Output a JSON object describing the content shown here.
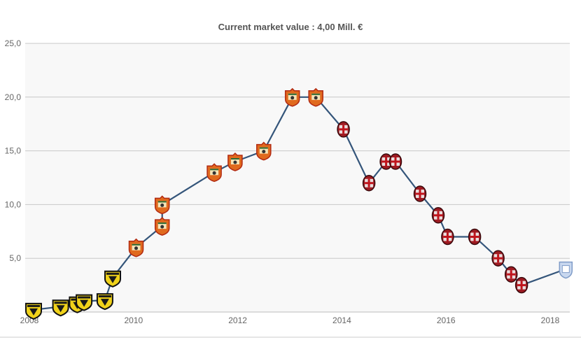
{
  "chart_data": {
    "type": "line",
    "title": "Current market value : 4,00 Mill. €",
    "xlabel": "",
    "ylabel": "",
    "xlim": [
      2008,
      2018.3
    ],
    "ylim": [
      0,
      25
    ],
    "y_ticks": [
      {
        "value": 5,
        "label": "5,0"
      },
      {
        "value": 10,
        "label": "10,0"
      },
      {
        "value": 15,
        "label": "15,0"
      },
      {
        "value": 20,
        "label": "20,0"
      },
      {
        "value": 25,
        "label": "25,0"
      }
    ],
    "x_ticks": [
      {
        "value": 2008,
        "label": "2008"
      },
      {
        "value": 2010,
        "label": "2010"
      },
      {
        "value": 2012,
        "label": "2012"
      },
      {
        "value": 2014,
        "label": "2014"
      },
      {
        "value": 2016,
        "label": "2016"
      },
      {
        "value": 2018,
        "label": "2018"
      }
    ],
    "grid": true,
    "line_color": "#34557a",
    "points": [
      {
        "x": 2008.08,
        "y": 0.2,
        "club": "yellow-black-shield"
      },
      {
        "x": 2008.6,
        "y": 0.5,
        "club": "yellow-black-shield"
      },
      {
        "x": 2008.92,
        "y": 0.8,
        "club": "yellow-black-shield"
      },
      {
        "x": 2009.05,
        "y": 1.0,
        "club": "yellow-black-shield"
      },
      {
        "x": 2009.45,
        "y": 1.1,
        "club": "yellow-black-shield"
      },
      {
        "x": 2009.6,
        "y": 3.2,
        "club": "yellow-black-shield"
      },
      {
        "x": 2010.05,
        "y": 6.0,
        "club": "red-orange-crest"
      },
      {
        "x": 2010.55,
        "y": 8.0,
        "club": "red-orange-crest"
      },
      {
        "x": 2010.55,
        "y": 10.0,
        "club": "red-orange-crest"
      },
      {
        "x": 2011.55,
        "y": 13.0,
        "club": "red-orange-crest"
      },
      {
        "x": 2011.95,
        "y": 14.0,
        "club": "red-orange-crest"
      },
      {
        "x": 2012.5,
        "y": 15.0,
        "club": "red-orange-crest"
      },
      {
        "x": 2013.05,
        "y": 20.0,
        "club": "red-orange-crest"
      },
      {
        "x": 2013.5,
        "y": 20.0,
        "club": "red-orange-crest"
      },
      {
        "x": 2014.03,
        "y": 17.0,
        "club": "red-black-round"
      },
      {
        "x": 2014.52,
        "y": 12.0,
        "club": "red-black-round"
      },
      {
        "x": 2014.85,
        "y": 14.0,
        "club": "red-black-round"
      },
      {
        "x": 2015.03,
        "y": 14.0,
        "club": "red-black-round"
      },
      {
        "x": 2015.5,
        "y": 11.0,
        "club": "red-black-round"
      },
      {
        "x": 2015.85,
        "y": 9.0,
        "club": "red-black-round"
      },
      {
        "x": 2016.03,
        "y": 7.0,
        "club": "red-black-round"
      },
      {
        "x": 2016.55,
        "y": 7.0,
        "club": "red-black-round"
      },
      {
        "x": 2017.0,
        "y": 5.0,
        "club": "red-black-round"
      },
      {
        "x": 2017.25,
        "y": 3.5,
        "club": "red-black-round"
      },
      {
        "x": 2017.45,
        "y": 2.5,
        "club": "red-black-round"
      },
      {
        "x": 2018.3,
        "y": 4.0,
        "club": "light-blue-crest"
      }
    ]
  },
  "club_styles": {
    "yellow-black-shield": {
      "fill": "#f0d21a",
      "stroke": "#111111",
      "inner": "#1a1a1a"
    },
    "red-orange-crest": {
      "fill": "#e06a1e",
      "stroke": "#b22a12",
      "inner": "#f4e4b8"
    },
    "red-black-round": {
      "fill": "#9e1b22",
      "stroke": "#3a0a0d",
      "inner": "#e8dede"
    },
    "light-blue-crest": {
      "fill": "#c9d8ef",
      "stroke": "#7f9cc8",
      "inner": "#ffffff"
    }
  }
}
